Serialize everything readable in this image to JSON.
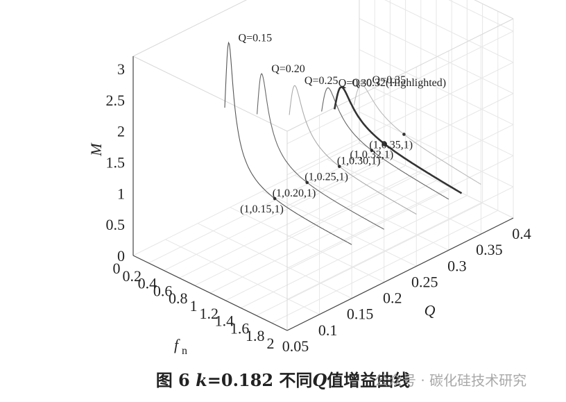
{
  "chart_data": {
    "type": "line",
    "projection": "3d",
    "title": "",
    "xlabel": "f",
    "xlabel_sub": "n",
    "ylabel": "Q",
    "zlabel": "M",
    "xlim": [
      0,
      2
    ],
    "ylim": [
      0.05,
      0.4
    ],
    "zlim": [
      0,
      3.2
    ],
    "x_ticks": [
      "0",
      "0.2",
      "0.4",
      "0.6",
      "0.8",
      "1",
      "1.2",
      "1.4",
      "1.6",
      "1.8",
      "2"
    ],
    "y_ticks": [
      "0.05",
      "0.1",
      "0.15",
      "0.2",
      "0.25",
      "0.3",
      "0.35",
      "0.4"
    ],
    "z_ticks": [
      "0",
      "0.5",
      "1",
      "1.5",
      "2",
      "2.5",
      "3"
    ],
    "grid": true,
    "k": 0.182,
    "series": [
      {
        "name": "Q=0.15",
        "q": 0.15,
        "peak_fn": 0.43,
        "peak_m": 3.2,
        "color": "#555555",
        "highlight": false
      },
      {
        "name": "Q=0.20",
        "q": 0.2,
        "peak_fn": 0.47,
        "peak_m": 2.55,
        "color": "#666666",
        "highlight": false
      },
      {
        "name": "Q=0.25",
        "q": 0.25,
        "peak_fn": 0.52,
        "peak_m": 2.2,
        "color": "#aaaaaa",
        "highlight": false
      },
      {
        "name": "Q=0.30",
        "q": 0.3,
        "peak_fn": 0.57,
        "peak_m": 2.0,
        "color": "#666666",
        "highlight": false
      },
      {
        "name": "Q=0.32(Highlighted)",
        "q": 0.32,
        "peak_fn": 0.6,
        "peak_m": 1.95,
        "color": "#333333",
        "highlight": true
      },
      {
        "name": "Q=0.35",
        "q": 0.35,
        "peak_fn": 0.63,
        "peak_m": 1.9,
        "color": "#bbbbbb",
        "highlight": false
      }
    ],
    "annotations": [
      {
        "text": "(1,0.15,1)",
        "x": 1,
        "y": 0.15,
        "z": 1
      },
      {
        "text": "(1,0.20,1)",
        "x": 1,
        "y": 0.2,
        "z": 1
      },
      {
        "text": "(1,0.25,1)",
        "x": 1,
        "y": 0.25,
        "z": 1
      },
      {
        "text": "(1,0.30,1)",
        "x": 1,
        "y": 0.3,
        "z": 1
      },
      {
        "text": "(1,0.32,1)",
        "x": 1,
        "y": 0.32,
        "z": 1
      },
      {
        "text": "(1,0.35,1)",
        "x": 1,
        "y": 0.35,
        "z": 1
      }
    ]
  },
  "caption": {
    "prefix": "图 6",
    "k_symbol": "k",
    "k_value": "=0.182",
    "middle": "不同",
    "q_symbol": "Q",
    "suffix": "值增益曲线"
  },
  "watermark": "公众号 · 碳化硅技术研究"
}
